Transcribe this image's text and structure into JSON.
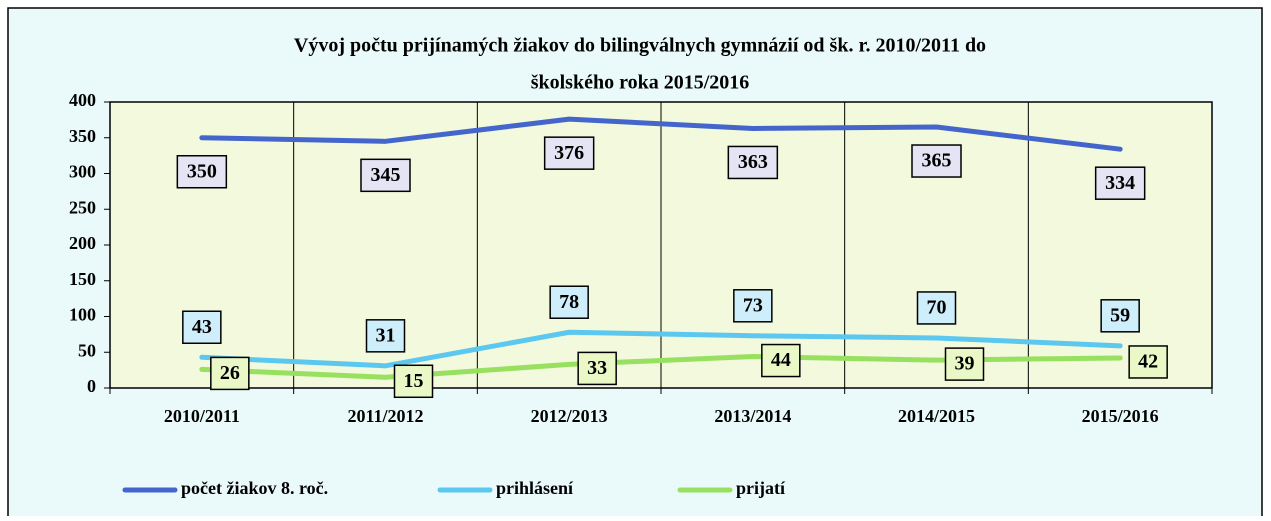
{
  "chart_data": {
    "type": "line",
    "title": [
      "Vývoj počtu prijínamých žiakov do bilingválnych gymnázií od šk. r. 2010/2011 do",
      "školského roka  2015/2016"
    ],
    "categories": [
      "2010/2011",
      "2011/2012",
      "2012/2013",
      "2013/2014",
      "2014/2015",
      "2015/2016"
    ],
    "series": [
      {
        "name": "počet žiakov 8. roč.",
        "color": "#4466cc",
        "label_fill": "#e4e4f4",
        "values": [
          350,
          345,
          376,
          363,
          365,
          334
        ]
      },
      {
        "name": "prihlásení",
        "color": "#5cc8f0",
        "label_fill": "#cdeefa",
        "values": [
          43,
          31,
          78,
          73,
          70,
          59
        ]
      },
      {
        "name": "prijatí",
        "color": "#98e060",
        "label_fill": "#eaf8c8",
        "values": [
          26,
          15,
          33,
          44,
          39,
          42
        ]
      }
    ],
    "ylim": [
      0,
      400
    ],
    "yticks": [
      0,
      50,
      100,
      150,
      200,
      250,
      300,
      350,
      400
    ],
    "grid": "vertical",
    "legend": "bottom"
  }
}
